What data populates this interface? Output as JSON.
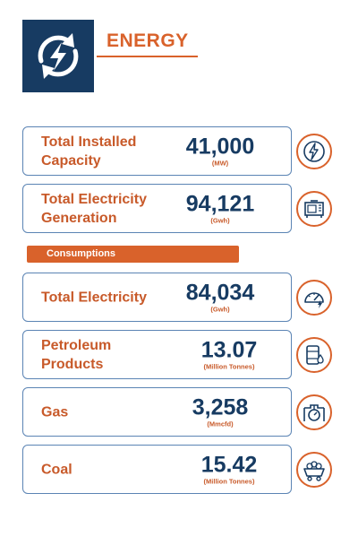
{
  "header": {
    "title": "ENERGY",
    "icon": "renewable-energy-bolt-icon"
  },
  "section_label": "Consumptions",
  "colors": {
    "navy": "#173b62",
    "orange": "#d9622b",
    "border": "#5b84b4"
  },
  "cards": {
    "installed_capacity": {
      "label": "Total Installed Capacity",
      "value": "41,000",
      "unit": "(MW)",
      "icon": "lightning-bolt-icon"
    },
    "electricity_generation": {
      "label": "Total Electricity Generation",
      "value": "94,121",
      "unit": "(Gwh)",
      "icon": "generator-icon"
    },
    "electricity_consumption": {
      "label": "Total Electricity",
      "value": "84,034",
      "unit": "(Gwh)",
      "icon": "meter-gauge-icon"
    },
    "petroleum": {
      "label": "Petroleum Products",
      "value": "13.07",
      "unit": "(Million Tonnes)",
      "icon": "oil-barrel-icon"
    },
    "gas": {
      "label": "Gas",
      "value": "3,258",
      "unit": "(Mmcfd)",
      "icon": "gas-pipeline-icon"
    },
    "coal": {
      "label": "Coal",
      "value": "15.42",
      "unit": "(Million Tonnes)",
      "icon": "coal-cart-icon"
    }
  }
}
